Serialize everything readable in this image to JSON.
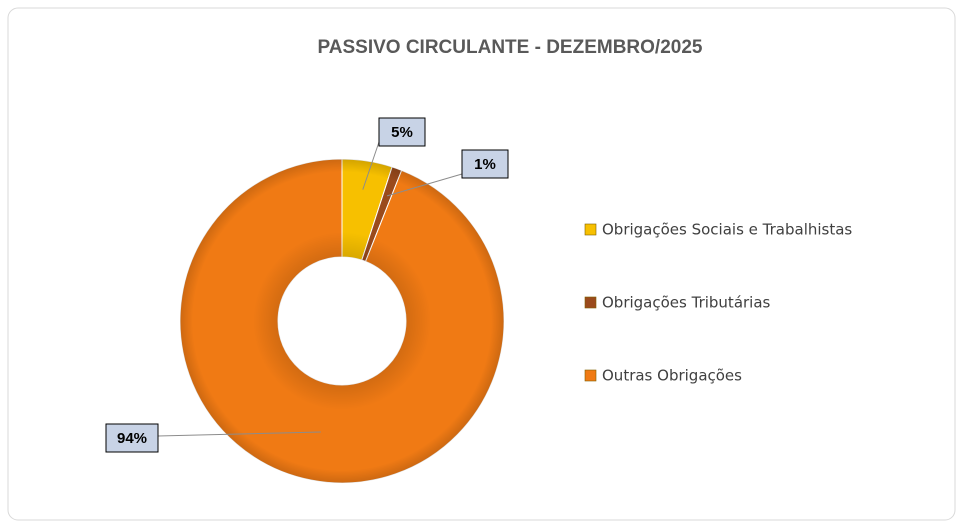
{
  "chart_data": {
    "type": "donut",
    "title": "PASSIVO  CIRCULANTE - DEZEMBRO/2025",
    "categories": [
      "Obrigações Sociais e Trabalhistas",
      "Obrigações Tributárias",
      "Outras Obrigações"
    ],
    "values": [
      5,
      1,
      94
    ],
    "value_labels": [
      "5%",
      "1%",
      "94%"
    ],
    "colors": [
      "#f7c000",
      "#9a4a1c",
      "#f07a14"
    ],
    "legend": "right"
  }
}
